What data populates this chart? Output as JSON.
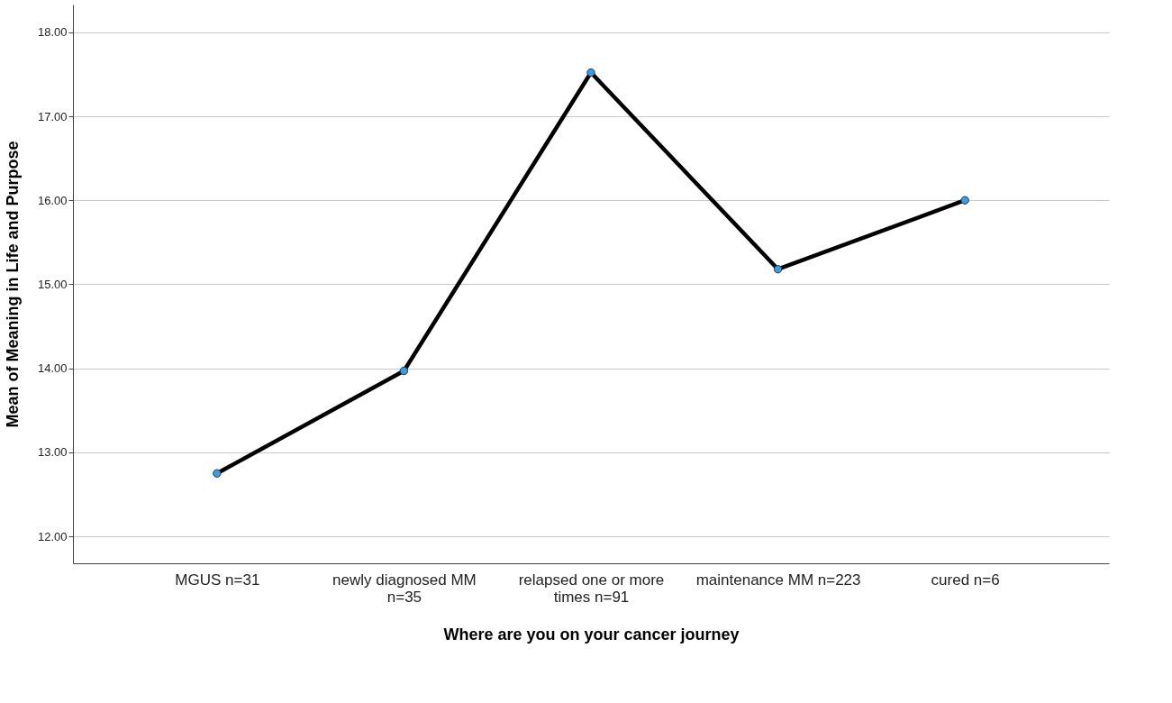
{
  "chart_data": {
    "type": "line",
    "xlabel": "Where are you on your cancer journey",
    "ylabel": "Mean of Meaning in Life and Purpose",
    "categories": [
      "MGUS n=31",
      "newly diagnosed MM n=35",
      "relapsed one or more times n=91",
      "maintenance MM n=223",
      "cured n=6"
    ],
    "series": [
      {
        "color": "#000000",
        "values": [
          12.75,
          13.97,
          17.52,
          15.18,
          16.0
        ]
      }
    ],
    "marker": "circle",
    "line_style": "solid",
    "grid": "y",
    "ylim": [
      11.68,
      18.33
    ],
    "yticks": [
      {
        "value": 12,
        "label": "12.00"
      },
      {
        "value": 13,
        "label": "13.00"
      },
      {
        "value": 14,
        "label": "14.00"
      },
      {
        "value": 15,
        "label": "15.00"
      },
      {
        "value": 16,
        "label": "16.00"
      },
      {
        "value": 17,
        "label": "17.00"
      },
      {
        "value": 18,
        "label": "18.00"
      }
    ]
  }
}
